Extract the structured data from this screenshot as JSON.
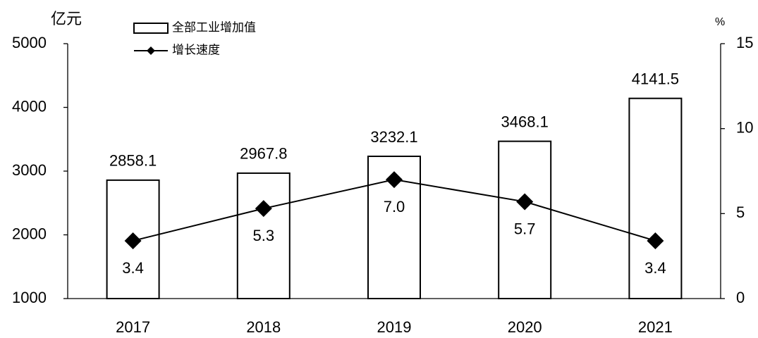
{
  "chart_data": {
    "type": "bar",
    "y_label": "亿元",
    "y2_label": "%",
    "categories": [
      "2017",
      "2018",
      "2019",
      "2020",
      "2021"
    ],
    "series": [
      {
        "name": "全部工业增加值",
        "type": "bar",
        "color": "#ffffff",
        "values": [
          2858.1,
          2967.8,
          3232.1,
          3468.1,
          4141.5
        ]
      },
      {
        "name": "增长速度",
        "type": "line",
        "axis": "y2",
        "color": "#000000",
        "values": [
          3.4,
          5.3,
          7.0,
          5.7,
          3.4
        ],
        "value_labels": [
          "3.4",
          "5.3",
          "7.0",
          "5.7",
          "3.4"
        ]
      }
    ],
    "ylim": [
      1000,
      5000
    ],
    "yticks": [
      1000,
      2000,
      3000,
      4000,
      5000
    ],
    "y2lim": [
      0,
      15
    ],
    "y2ticks": [
      0,
      5,
      10,
      15
    ],
    "grid": false,
    "legend": "top-left"
  }
}
